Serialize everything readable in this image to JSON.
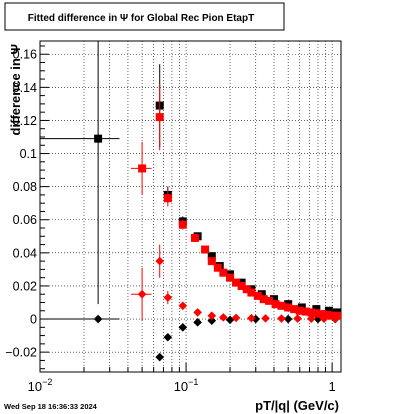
{
  "chart_data": {
    "type": "scatter",
    "title": "Fitted difference in  Ψ  for Global Rec Pion EtapT",
    "xlabel": "pT/|q| (GeV/c)",
    "ylabel": "difference in Ψ",
    "footer": "Wed Sep 18 16:36:33 2024",
    "x_scale": "log",
    "xlim": [
      0.01,
      1.15
    ],
    "ylim": [
      -0.032,
      0.168
    ],
    "grid": true,
    "x_ticks": [
      {
        "value": 0.01,
        "base": "10",
        "exp": "−2"
      },
      {
        "value": 0.1,
        "base": "10",
        "exp": "−1"
      },
      {
        "value": 1,
        "base": "1",
        "exp": ""
      }
    ],
    "y_ticks": [
      {
        "value": -0.02,
        "label": "−0.02"
      },
      {
        "value": 0,
        "label": "0"
      },
      {
        "value": 0.02,
        "label": "0.02"
      },
      {
        "value": 0.04,
        "label": "0.04"
      },
      {
        "value": 0.06,
        "label": "0.06"
      },
      {
        "value": 0.08,
        "label": "0.08"
      },
      {
        "value": 0.1,
        "label": "0.1"
      },
      {
        "value": 0.12,
        "label": "0.12"
      },
      {
        "value": 0.14,
        "label": "0.14"
      },
      {
        "value": 0.16,
        "label": "0.16"
      }
    ],
    "series": [
      {
        "marker": "square",
        "color": "#000000",
        "points": [
          {
            "x": 0.025,
            "y": 0.109,
            "xerr": [
              0.015,
              0.01
            ],
            "yerr": [
              0.1,
              0.1
            ]
          },
          {
            "x": 0.066,
            "y": 0.129,
            "yerr": [
              0.025,
              0.025
            ]
          },
          {
            "x": 0.075,
            "y": 0.075,
            "yerr": [
              0.005,
              0.005
            ]
          },
          {
            "x": 0.095,
            "y": 0.059,
            "yerr": [
              0.003,
              0.003
            ]
          },
          {
            "x": 0.12,
            "y": 0.05,
            "yerr": [
              0.002,
              0.002
            ]
          },
          {
            "x": 0.15,
            "y": 0.038
          },
          {
            "x": 0.17,
            "y": 0.032
          },
          {
            "x": 0.2,
            "y": 0.027
          },
          {
            "x": 0.24,
            "y": 0.022
          },
          {
            "x": 0.28,
            "y": 0.018
          },
          {
            "x": 0.33,
            "y": 0.015
          },
          {
            "x": 0.4,
            "y": 0.012
          },
          {
            "x": 0.5,
            "y": 0.009
          },
          {
            "x": 0.62,
            "y": 0.007
          },
          {
            "x": 0.78,
            "y": 0.006
          },
          {
            "x": 0.95,
            "y": 0.005
          },
          {
            "x": 1.08,
            "y": 0.004
          }
        ]
      },
      {
        "marker": "diamond",
        "color": "#000000",
        "points": [
          {
            "x": 0.025,
            "y": 0.0,
            "xerr": [
              0.015,
              0.01
            ]
          },
          {
            "x": 0.066,
            "y": -0.023
          },
          {
            "x": 0.075,
            "y": -0.011
          },
          {
            "x": 0.095,
            "y": -0.005
          },
          {
            "x": 0.12,
            "y": -0.002
          },
          {
            "x": 0.15,
            "y": -0.001
          },
          {
            "x": 0.2,
            "y": -0.0005
          },
          {
            "x": 0.3,
            "y": 0.0
          },
          {
            "x": 0.5,
            "y": 0.0
          },
          {
            "x": 0.8,
            "y": 0.0
          },
          {
            "x": 1.05,
            "y": 0.0
          }
        ]
      },
      {
        "marker": "square",
        "color": "#ff0000",
        "points": [
          {
            "x": 0.05,
            "y": 0.091,
            "xerr": [
              0.008,
              0.008
            ],
            "yerr": [
              0.016,
              0.016
            ]
          },
          {
            "x": 0.066,
            "y": 0.122,
            "yerr": [
              0.02,
              0.02
            ]
          },
          {
            "x": 0.075,
            "y": 0.073,
            "yerr": [
              0.005,
              0.005
            ]
          },
          {
            "x": 0.095,
            "y": 0.057,
            "yerr": [
              0.003,
              0.003
            ]
          },
          {
            "x": 0.115,
            "y": 0.049
          },
          {
            "x": 0.135,
            "y": 0.042
          },
          {
            "x": 0.15,
            "y": 0.035
          },
          {
            "x": 0.165,
            "y": 0.031
          },
          {
            "x": 0.18,
            "y": 0.028
          },
          {
            "x": 0.2,
            "y": 0.025
          },
          {
            "x": 0.22,
            "y": 0.022
          },
          {
            "x": 0.24,
            "y": 0.02
          },
          {
            "x": 0.26,
            "y": 0.018
          },
          {
            "x": 0.28,
            "y": 0.016
          },
          {
            "x": 0.31,
            "y": 0.014
          },
          {
            "x": 0.34,
            "y": 0.012
          },
          {
            "x": 0.37,
            "y": 0.011
          },
          {
            "x": 0.41,
            "y": 0.009
          },
          {
            "x": 0.45,
            "y": 0.008
          },
          {
            "x": 0.5,
            "y": 0.007
          },
          {
            "x": 0.55,
            "y": 0.006
          },
          {
            "x": 0.6,
            "y": 0.005
          },
          {
            "x": 0.66,
            "y": 0.0045
          },
          {
            "x": 0.72,
            "y": 0.004
          },
          {
            "x": 0.78,
            "y": 0.0035
          },
          {
            "x": 0.85,
            "y": 0.003
          },
          {
            "x": 0.93,
            "y": 0.0025
          },
          {
            "x": 1.0,
            "y": 0.002
          },
          {
            "x": 1.08,
            "y": 0.002
          }
        ]
      },
      {
        "marker": "diamond",
        "color": "#ff0000",
        "points": [
          {
            "x": 0.05,
            "y": 0.015,
            "xerr": [
              0.008,
              0.008
            ],
            "yerr": [
              0.016,
              0.016
            ]
          },
          {
            "x": 0.066,
            "y": 0.035,
            "yerr": [
              0.01,
              0.01
            ]
          },
          {
            "x": 0.075,
            "y": 0.013,
            "yerr": [
              0.004,
              0.004
            ]
          },
          {
            "x": 0.095,
            "y": 0.008
          },
          {
            "x": 0.12,
            "y": 0.004
          },
          {
            "x": 0.15,
            "y": 0.002
          },
          {
            "x": 0.18,
            "y": 0.001
          },
          {
            "x": 0.22,
            "y": 0.0007
          },
          {
            "x": 0.28,
            "y": 0.0005
          },
          {
            "x": 0.35,
            "y": 0.0004
          },
          {
            "x": 0.45,
            "y": 0.0003
          },
          {
            "x": 0.58,
            "y": 0.0003
          },
          {
            "x": 0.72,
            "y": 0.0002
          },
          {
            "x": 0.88,
            "y": 0.0002
          },
          {
            "x": 1.05,
            "y": 0.0002
          }
        ]
      }
    ]
  }
}
